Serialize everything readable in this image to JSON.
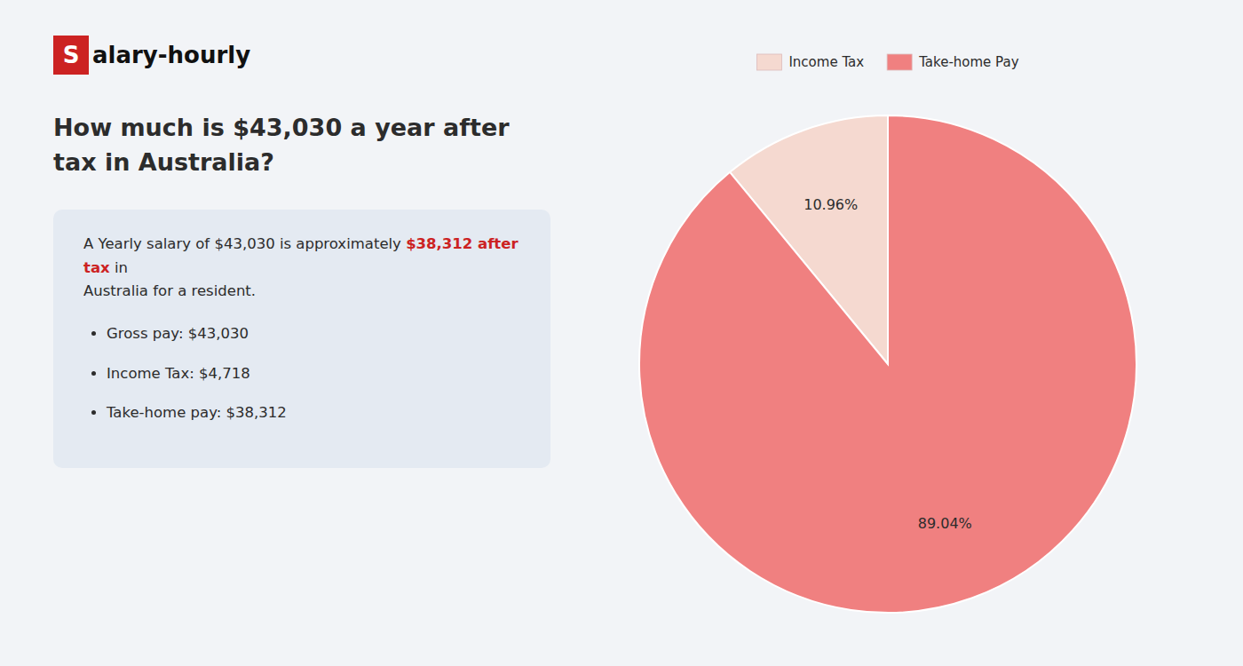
{
  "chart_data": {
    "type": "pie",
    "title": "How much is $43,030 a year after tax in Australia?",
    "categories": [
      "Income Tax",
      "Take-home Pay"
    ],
    "values": [
      10.96,
      89.04
    ],
    "value_labels": [
      "10.96%",
      "89.04%"
    ],
    "colors": [
      "#f5d9d0",
      "#f08080"
    ],
    "data_labels": true,
    "legend": "top",
    "annotations": [
      {
        "text": "Salary-hourly",
        "color": "#cc2222"
      },
      {
        "text": "A Yearly salary of $43,030 is approximately "
      },
      {
        "text": "$38,312 after tax",
        "color": "#cc2222"
      },
      {
        "text": " in"
      },
      {
        "text": "Australia for a resident."
      },
      {
        "text": "Gross pay: $43,030"
      },
      {
        "text": "Income Tax: $4,718"
      },
      {
        "text": "Take-home pay: $38,312"
      }
    ]
  }
}
